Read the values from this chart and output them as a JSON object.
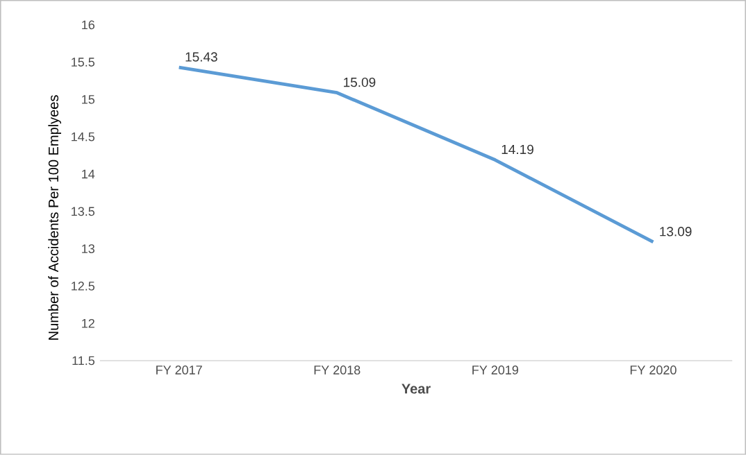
{
  "chart_data": {
    "type": "line",
    "xlabel": "Year",
    "ylabel": "Number of Accidents Per 100 Emplyees",
    "categories": [
      "FY 2017",
      "FY 2018",
      "FY 2019",
      "FY 2020"
    ],
    "values": [
      15.43,
      15.09,
      14.19,
      13.09
    ],
    "color": "#5b9bd5",
    "ylim": [
      11.5,
      16
    ],
    "yticks": [
      11.5,
      12,
      12.5,
      13,
      13.5,
      14,
      14.5,
      15,
      15.5,
      16
    ],
    "grid": false,
    "marker": "none",
    "line_style": "solid",
    "data_labels": true
  }
}
